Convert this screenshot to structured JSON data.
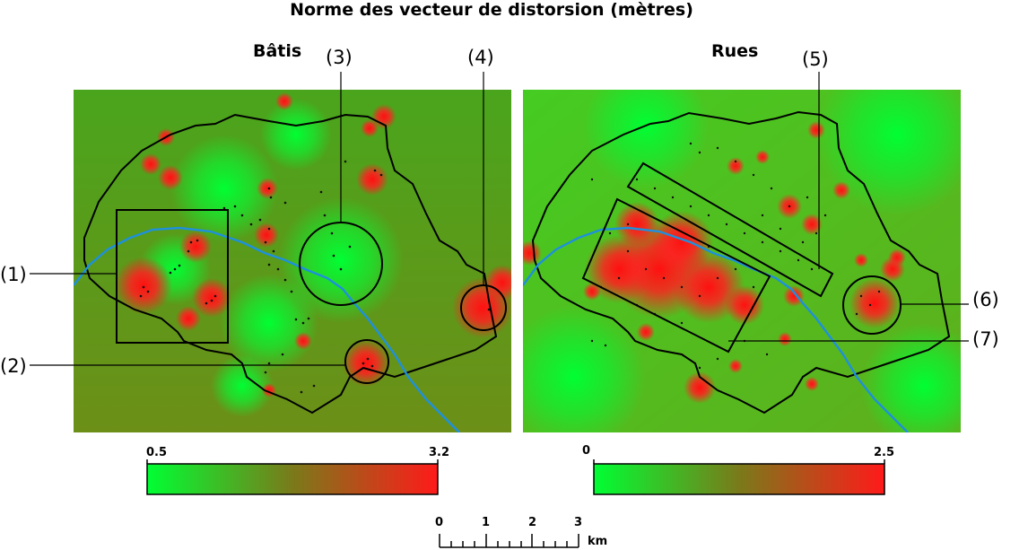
{
  "title": "Norme des vecteur de distorsion (mètres)",
  "panels": [
    {
      "name": "batis",
      "title": "Bâtis",
      "colorbar": {
        "min_label": "0.5",
        "max_label": "3.2",
        "min": 0.5,
        "max": 3.2
      }
    },
    {
      "name": "rues",
      "title": "Rues",
      "colorbar": {
        "min_label": "0",
        "max_label": "2.5",
        "min": 0,
        "max": 2.5
      }
    }
  ],
  "callouts": [
    "(1)",
    "(2)",
    "(3)",
    "(4)",
    "(5)",
    "(6)",
    "(7)"
  ],
  "scale_bar": {
    "ticks": [
      "0",
      "1",
      "2",
      "3"
    ],
    "unit": "km"
  },
  "colors": {
    "low": "#00ff33",
    "mid": "#7a7a1a",
    "high": "#ff1a1a",
    "river": "#1e90dd",
    "boundary": "#000000"
  }
}
